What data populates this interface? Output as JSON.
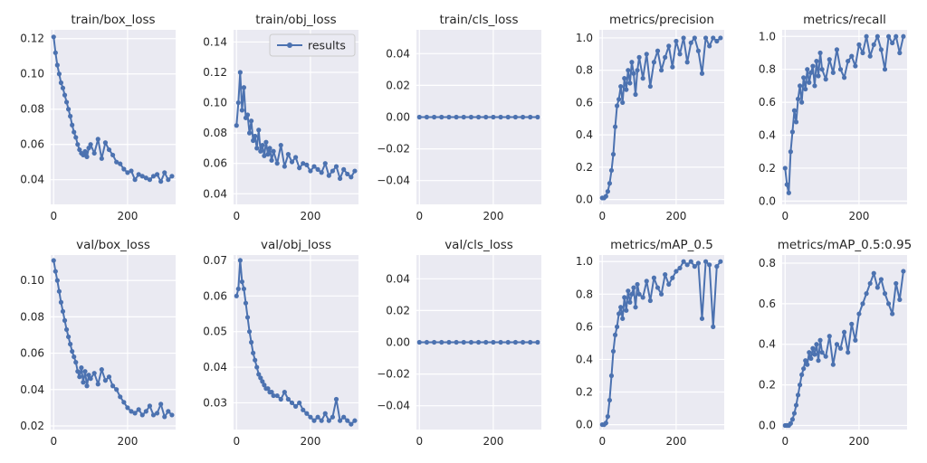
{
  "chart_data": [
    {
      "type": "line",
      "title": "train/box_loss",
      "xlim": [
        -8,
        330
      ],
      "ylim": [
        0.026,
        0.125
      ],
      "x_ticks": [
        0,
        200
      ],
      "y_ticks": [
        0.04,
        0.06,
        0.08,
        0.1,
        0.12
      ],
      "y_tick_labels": [
        "0.04",
        "0.06",
        "0.08",
        "0.10",
        "0.12"
      ],
      "series": [
        {
          "x": [
            0,
            5,
            10,
            15,
            20,
            25,
            30,
            35,
            40,
            45,
            50,
            55,
            60,
            65,
            70,
            75,
            80,
            85,
            90,
            95,
            100,
            110,
            120,
            130,
            140,
            150,
            160,
            170,
            180,
            190,
            200,
            210,
            220,
            230,
            240,
            250,
            260,
            270,
            280,
            290,
            300,
            310,
            320
          ],
          "y": [
            0.121,
            0.112,
            0.105,
            0.1,
            0.095,
            0.092,
            0.088,
            0.084,
            0.08,
            0.076,
            0.071,
            0.067,
            0.064,
            0.06,
            0.057,
            0.055,
            0.054,
            0.056,
            0.053,
            0.058,
            0.06,
            0.055,
            0.063,
            0.052,
            0.061,
            0.057,
            0.054,
            0.05,
            0.049,
            0.046,
            0.044,
            0.045,
            0.04,
            0.043,
            0.042,
            0.041,
            0.04,
            0.042,
            0.043,
            0.039,
            0.044,
            0.04,
            0.042
          ]
        }
      ]
    },
    {
      "type": "line",
      "title": "train/obj_loss",
      "xlim": [
        -8,
        330
      ],
      "ylim": [
        0.033,
        0.148
      ],
      "x_ticks": [
        0,
        200
      ],
      "y_ticks": [
        0.04,
        0.06,
        0.08,
        0.1,
        0.12,
        0.14
      ],
      "y_tick_labels": [
        "0.04",
        "0.06",
        "0.08",
        "0.10",
        "0.12",
        "0.14"
      ],
      "legend": {
        "label": "results",
        "position": "top-right"
      },
      "series": [
        {
          "name": "results",
          "x": [
            0,
            5,
            10,
            15,
            20,
            25,
            30,
            35,
            40,
            45,
            50,
            55,
            60,
            65,
            70,
            75,
            80,
            85,
            90,
            95,
            100,
            110,
            120,
            130,
            140,
            150,
            160,
            170,
            180,
            190,
            200,
            210,
            220,
            230,
            240,
            250,
            260,
            270,
            280,
            290,
            300,
            310,
            320
          ],
          "y": [
            0.085,
            0.1,
            0.12,
            0.095,
            0.11,
            0.09,
            0.092,
            0.08,
            0.088,
            0.075,
            0.078,
            0.07,
            0.082,
            0.068,
            0.072,
            0.065,
            0.074,
            0.066,
            0.07,
            0.062,
            0.068,
            0.06,
            0.072,
            0.058,
            0.066,
            0.061,
            0.064,
            0.057,
            0.06,
            0.059,
            0.055,
            0.058,
            0.056,
            0.054,
            0.06,
            0.052,
            0.055,
            0.058,
            0.05,
            0.056,
            0.053,
            0.051,
            0.055
          ]
        }
      ]
    },
    {
      "type": "line",
      "title": "train/cls_loss",
      "xlim": [
        -8,
        330
      ],
      "ylim": [
        -0.055,
        0.055
      ],
      "x_ticks": [
        0,
        200
      ],
      "y_ticks": [
        -0.04,
        -0.02,
        0.0,
        0.02,
        0.04
      ],
      "y_tick_labels": [
        "−0.04",
        "−0.02",
        "0.00",
        "0.02",
        "0.04"
      ],
      "series": [
        {
          "x": [
            0,
            20,
            40,
            60,
            80,
            100,
            120,
            140,
            160,
            180,
            200,
            220,
            240,
            260,
            280,
            300,
            320
          ],
          "y": [
            0,
            0,
            0,
            0,
            0,
            0,
            0,
            0,
            0,
            0,
            0,
            0,
            0,
            0,
            0,
            0,
            0
          ]
        }
      ]
    },
    {
      "type": "line",
      "title": "metrics/precision",
      "xlim": [
        -8,
        330
      ],
      "ylim": [
        -0.03,
        1.05
      ],
      "x_ticks": [
        0,
        200
      ],
      "y_ticks": [
        0.0,
        0.2,
        0.4,
        0.6,
        0.8,
        1.0
      ],
      "y_tick_labels": [
        "0.0",
        "0.2",
        "0.4",
        "0.6",
        "0.8",
        "1.0"
      ],
      "series": [
        {
          "x": [
            0,
            5,
            10,
            15,
            20,
            25,
            30,
            35,
            40,
            45,
            50,
            55,
            60,
            65,
            70,
            75,
            80,
            85,
            90,
            95,
            100,
            110,
            120,
            130,
            140,
            150,
            160,
            170,
            180,
            190,
            200,
            210,
            220,
            230,
            240,
            250,
            260,
            270,
            280,
            290,
            300,
            310,
            320
          ],
          "y": [
            0.01,
            0.01,
            0.02,
            0.05,
            0.1,
            0.18,
            0.28,
            0.45,
            0.58,
            0.62,
            0.7,
            0.6,
            0.75,
            0.68,
            0.8,
            0.72,
            0.85,
            0.78,
            0.65,
            0.8,
            0.88,
            0.75,
            0.9,
            0.7,
            0.85,
            0.92,
            0.8,
            0.88,
            0.95,
            0.82,
            0.98,
            0.9,
            1.0,
            0.85,
            0.97,
            1.0,
            0.92,
            0.78,
            1.0,
            0.95,
            1.0,
            0.98,
            1.0
          ]
        }
      ]
    },
    {
      "type": "line",
      "title": "metrics/recall",
      "xlim": [
        -8,
        330
      ],
      "ylim": [
        -0.02,
        1.04
      ],
      "x_ticks": [
        0,
        200
      ],
      "y_ticks": [
        0.0,
        0.2,
        0.4,
        0.6,
        0.8,
        1.0
      ],
      "y_tick_labels": [
        "0.0",
        "0.2",
        "0.4",
        "0.6",
        "0.8",
        "1.0"
      ],
      "series": [
        {
          "x": [
            0,
            5,
            10,
            15,
            20,
            25,
            30,
            35,
            40,
            45,
            50,
            55,
            60,
            65,
            70,
            75,
            80,
            85,
            90,
            95,
            100,
            110,
            120,
            130,
            140,
            150,
            160,
            170,
            180,
            190,
            200,
            210,
            220,
            230,
            240,
            250,
            260,
            270,
            280,
            290,
            300,
            310,
            320
          ],
          "y": [
            0.2,
            0.1,
            0.05,
            0.3,
            0.42,
            0.55,
            0.48,
            0.62,
            0.7,
            0.6,
            0.75,
            0.68,
            0.8,
            0.72,
            0.78,
            0.82,
            0.7,
            0.85,
            0.76,
            0.9,
            0.8,
            0.74,
            0.86,
            0.78,
            0.92,
            0.8,
            0.75,
            0.85,
            0.88,
            0.82,
            0.95,
            0.9,
            1.0,
            0.88,
            0.95,
            1.0,
            0.92,
            0.8,
            1.0,
            0.96,
            1.0,
            0.9,
            1.0
          ]
        }
      ]
    },
    {
      "type": "line",
      "title": "val/box_loss",
      "xlim": [
        -8,
        330
      ],
      "ylim": [
        0.018,
        0.114
      ],
      "x_ticks": [
        0,
        200
      ],
      "y_ticks": [
        0.02,
        0.04,
        0.06,
        0.08,
        0.1
      ],
      "y_tick_labels": [
        "0.02",
        "0.04",
        "0.06",
        "0.08",
        "0.10"
      ],
      "series": [
        {
          "x": [
            0,
            5,
            10,
            15,
            20,
            25,
            30,
            35,
            40,
            45,
            50,
            55,
            60,
            65,
            70,
            75,
            80,
            85,
            90,
            95,
            100,
            110,
            120,
            130,
            140,
            150,
            160,
            170,
            180,
            190,
            200,
            210,
            220,
            230,
            240,
            250,
            260,
            270,
            280,
            290,
            300,
            310,
            320
          ],
          "y": [
            0.111,
            0.105,
            0.1,
            0.094,
            0.088,
            0.083,
            0.078,
            0.073,
            0.069,
            0.065,
            0.061,
            0.058,
            0.055,
            0.05,
            0.047,
            0.052,
            0.044,
            0.05,
            0.042,
            0.048,
            0.046,
            0.049,
            0.043,
            0.051,
            0.045,
            0.047,
            0.042,
            0.04,
            0.036,
            0.033,
            0.03,
            0.028,
            0.027,
            0.029,
            0.026,
            0.028,
            0.031,
            0.026,
            0.027,
            0.032,
            0.025,
            0.028,
            0.026
          ]
        }
      ]
    },
    {
      "type": "line",
      "title": "val/obj_loss",
      "xlim": [
        -8,
        330
      ],
      "ylim": [
        0.0225,
        0.0715
      ],
      "x_ticks": [
        0,
        200
      ],
      "y_ticks": [
        0.03,
        0.04,
        0.05,
        0.06,
        0.07
      ],
      "y_tick_labels": [
        "0.03",
        "0.04",
        "0.05",
        "0.06",
        "0.07"
      ],
      "series": [
        {
          "x": [
            0,
            5,
            10,
            15,
            20,
            25,
            30,
            35,
            40,
            45,
            50,
            55,
            60,
            65,
            70,
            75,
            80,
            85,
            90,
            95,
            100,
            110,
            120,
            130,
            140,
            150,
            160,
            170,
            180,
            190,
            200,
            210,
            220,
            230,
            240,
            250,
            260,
            270,
            280,
            290,
            300,
            310,
            320
          ],
          "y": [
            0.06,
            0.062,
            0.07,
            0.064,
            0.062,
            0.058,
            0.054,
            0.05,
            0.047,
            0.044,
            0.042,
            0.04,
            0.038,
            0.037,
            0.036,
            0.035,
            0.034,
            0.034,
            0.033,
            0.033,
            0.032,
            0.032,
            0.031,
            0.033,
            0.031,
            0.03,
            0.029,
            0.03,
            0.028,
            0.027,
            0.026,
            0.025,
            0.026,
            0.025,
            0.027,
            0.025,
            0.026,
            0.031,
            0.025,
            0.026,
            0.025,
            0.024,
            0.025
          ]
        }
      ]
    },
    {
      "type": "line",
      "title": "val/cls_loss",
      "xlim": [
        -8,
        330
      ],
      "ylim": [
        -0.055,
        0.055
      ],
      "x_ticks": [
        0,
        200
      ],
      "y_ticks": [
        -0.04,
        -0.02,
        0.0,
        0.02,
        0.04
      ],
      "y_tick_labels": [
        "−0.04",
        "−0.02",
        "0.00",
        "0.02",
        "0.04"
      ],
      "series": [
        {
          "x": [
            0,
            20,
            40,
            60,
            80,
            100,
            120,
            140,
            160,
            180,
            200,
            220,
            240,
            260,
            280,
            300,
            320
          ],
          "y": [
            0,
            0,
            0,
            0,
            0,
            0,
            0,
            0,
            0,
            0,
            0,
            0,
            0,
            0,
            0,
            0,
            0
          ]
        }
      ]
    },
    {
      "type": "line",
      "title": "metrics/mAP_0.5",
      "xlim": [
        -8,
        330
      ],
      "ylim": [
        -0.03,
        1.04
      ],
      "x_ticks": [
        0,
        200
      ],
      "y_ticks": [
        0.0,
        0.2,
        0.4,
        0.6,
        0.8,
        1.0
      ],
      "y_tick_labels": [
        "0.0",
        "0.2",
        "0.4",
        "0.6",
        "0.8",
        "1.0"
      ],
      "series": [
        {
          "x": [
            0,
            5,
            10,
            15,
            20,
            25,
            30,
            35,
            40,
            45,
            50,
            55,
            60,
            65,
            70,
            75,
            80,
            85,
            90,
            95,
            100,
            110,
            120,
            130,
            140,
            150,
            160,
            170,
            180,
            190,
            200,
            210,
            220,
            230,
            240,
            250,
            260,
            270,
            280,
            290,
            300,
            310,
            320
          ],
          "y": [
            0.0,
            0.0,
            0.01,
            0.05,
            0.15,
            0.3,
            0.45,
            0.55,
            0.6,
            0.68,
            0.72,
            0.65,
            0.78,
            0.7,
            0.82,
            0.75,
            0.8,
            0.84,
            0.72,
            0.86,
            0.8,
            0.78,
            0.88,
            0.76,
            0.9,
            0.84,
            0.8,
            0.92,
            0.86,
            0.9,
            0.94,
            0.96,
            1.0,
            0.98,
            1.0,
            0.97,
            0.99,
            0.65,
            1.0,
            0.98,
            0.6,
            0.97,
            1.0
          ]
        }
      ]
    },
    {
      "type": "line",
      "title": "metrics/mAP_0.5:0.95",
      "xlim": [
        -8,
        330
      ],
      "ylim": [
        -0.02,
        0.84
      ],
      "x_ticks": [
        0,
        200
      ],
      "y_ticks": [
        0.0,
        0.2,
        0.4,
        0.6,
        0.8
      ],
      "y_tick_labels": [
        "0.0",
        "0.2",
        "0.4",
        "0.6",
        "0.8"
      ],
      "series": [
        {
          "x": [
            0,
            5,
            10,
            15,
            20,
            25,
            30,
            35,
            40,
            45,
            50,
            55,
            60,
            65,
            70,
            75,
            80,
            85,
            90,
            95,
            100,
            110,
            120,
            130,
            140,
            150,
            160,
            170,
            180,
            190,
            200,
            210,
            220,
            230,
            240,
            250,
            260,
            270,
            280,
            290,
            300,
            310,
            320
          ],
          "y": [
            0.0,
            0.0,
            0.0,
            0.01,
            0.03,
            0.06,
            0.1,
            0.15,
            0.2,
            0.25,
            0.28,
            0.32,
            0.3,
            0.36,
            0.33,
            0.38,
            0.35,
            0.4,
            0.32,
            0.42,
            0.36,
            0.34,
            0.44,
            0.3,
            0.4,
            0.38,
            0.46,
            0.36,
            0.5,
            0.42,
            0.55,
            0.6,
            0.65,
            0.7,
            0.75,
            0.68,
            0.72,
            0.65,
            0.6,
            0.55,
            0.7,
            0.62,
            0.76
          ]
        }
      ]
    }
  ],
  "colors": {
    "line": "#4c72b0",
    "plot_bg": "#eaeaf2",
    "grid": "#ffffff",
    "text": "#262626"
  }
}
